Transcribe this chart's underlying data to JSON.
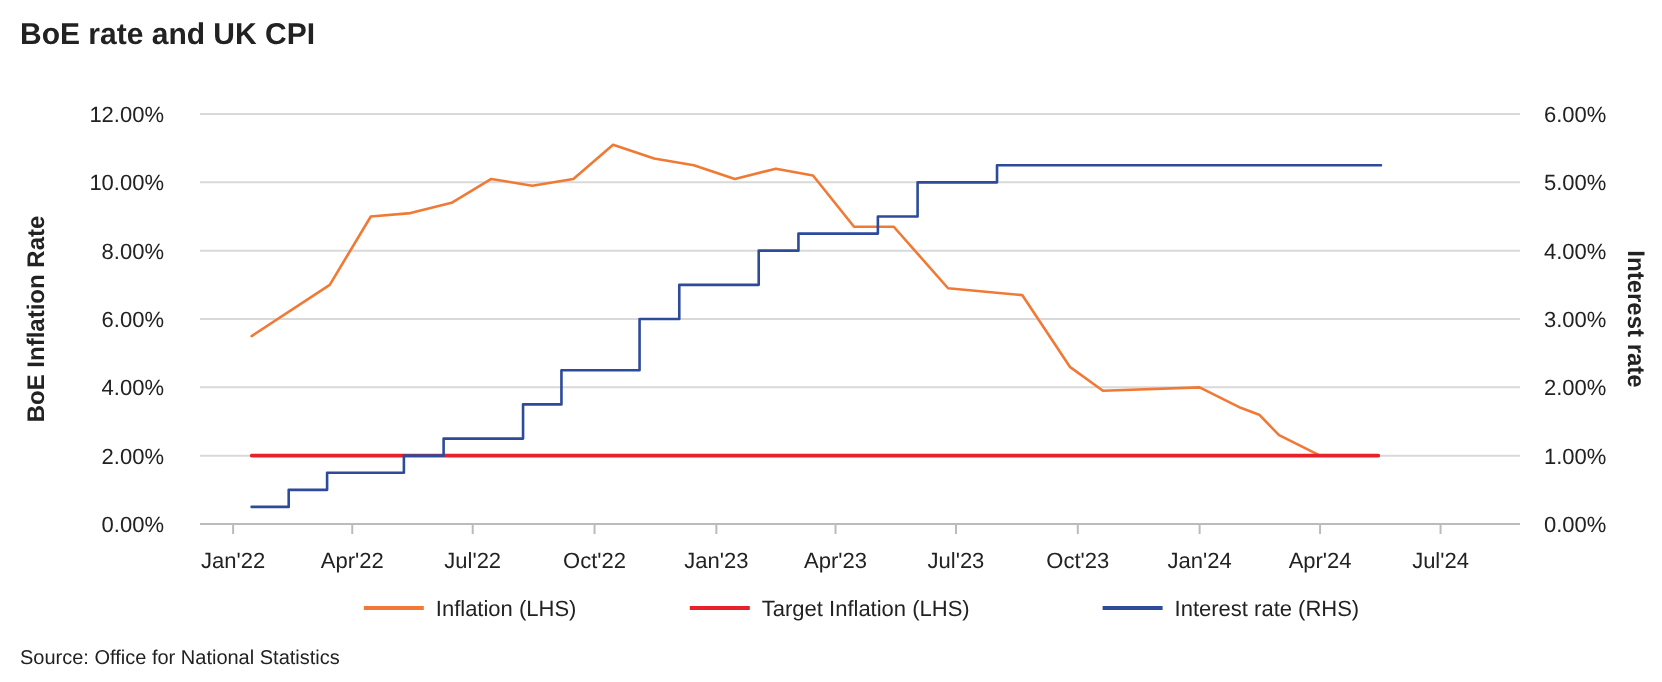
{
  "chart_data": {
    "type": "line",
    "title": "BoE rate and UK CPI",
    "ylabel": "BoE Inflation Rate",
    "y2label": "Interest rate",
    "xlim": [
      "2021-12-07",
      "2024-08-30"
    ],
    "xticks": [
      {
        "value": "2022-01-01",
        "label": "Jan'22"
      },
      {
        "value": "2022-04-01",
        "label": "Apr'22"
      },
      {
        "value": "2022-07-01",
        "label": "Jul'22"
      },
      {
        "value": "2022-10-01",
        "label": "Oct'22"
      },
      {
        "value": "2023-01-01",
        "label": "Jan'23"
      },
      {
        "value": "2023-04-01",
        "label": "Apr'23"
      },
      {
        "value": "2023-07-01",
        "label": "Jul'23"
      },
      {
        "value": "2023-10-01",
        "label": "Oct'23"
      },
      {
        "value": "2024-01-01",
        "label": "Jan'24"
      },
      {
        "value": "2024-04-01",
        "label": "Apr'24"
      },
      {
        "value": "2024-07-01",
        "label": "Jul'24"
      }
    ],
    "ylim": [
      0,
      12
    ],
    "yticks": [
      {
        "value": 0,
        "label": "0.00%"
      },
      {
        "value": 2,
        "label": "2.00%"
      },
      {
        "value": 4,
        "label": "4.00%"
      },
      {
        "value": 6,
        "label": "6.00%"
      },
      {
        "value": 8,
        "label": "8.00%"
      },
      {
        "value": 10,
        "label": "10.00%"
      },
      {
        "value": 12,
        "label": "12.00%"
      }
    ],
    "y2lim": [
      0,
      6
    ],
    "y2ticks": [
      {
        "value": 0,
        "label": "0.00%"
      },
      {
        "value": 1,
        "label": "1.00%"
      },
      {
        "value": 2,
        "label": "2.00%"
      },
      {
        "value": 3,
        "label": "3.00%"
      },
      {
        "value": 4,
        "label": "4.00%"
      },
      {
        "value": 5,
        "label": "5.00%"
      },
      {
        "value": 6,
        "label": "6.00%"
      }
    ],
    "grid": "y",
    "legend": "bottom",
    "series": [
      {
        "name": "Inflation (LHS)",
        "type": "line",
        "color": "#f07a35",
        "x": [
          "2022-01-15",
          "2022-03-15",
          "2022-04-15",
          "2022-05-15",
          "2022-06-15",
          "2022-07-15",
          "2022-08-15",
          "2022-09-15",
          "2022-10-15",
          "2022-11-15",
          "2022-12-15",
          "2023-01-15",
          "2023-02-15",
          "2023-03-15",
          "2023-04-15",
          "2023-05-15",
          "2023-06-25",
          "2023-08-20",
          "2023-09-25",
          "2023-10-20",
          "2024-01-01",
          "2024-02-01",
          "2024-02-15",
          "2024-03-01",
          "2024-04-01",
          "2024-05-15"
        ],
        "values": [
          5.5,
          7.0,
          9.0,
          9.1,
          9.4,
          10.1,
          9.9,
          10.1,
          11.1,
          10.7,
          10.5,
          10.1,
          10.4,
          10.2,
          8.7,
          8.7,
          6.9,
          6.7,
          4.6,
          3.9,
          4.0,
          3.4,
          3.2,
          2.6,
          2.0,
          2.0
        ]
      },
      {
        "name": "Target Inflation (LHS)",
        "type": "line",
        "color": "#e8202a",
        "x": [
          "2022-01-15",
          "2024-05-15"
        ],
        "values": [
          2,
          2
        ]
      },
      {
        "name": "Interest rate (RHS)",
        "type": "step",
        "axis": "y2",
        "color": "#2e4b9b",
        "x": [
          "2022-01-15",
          "2022-02-12",
          "2022-03-13",
          "2022-05-10",
          "2022-06-09",
          "2022-08-08",
          "2022-09-06",
          "2022-11-04",
          "2022-12-04",
          "2023-02-02",
          "2023-03-04",
          "2023-05-03",
          "2023-06-02",
          "2023-08-01",
          "2024-05-17"
        ],
        "values": [
          0.25,
          0.5,
          0.75,
          1.0,
          1.25,
          1.75,
          2.25,
          3.0,
          3.5,
          4.0,
          4.25,
          4.5,
          5.0,
          5.25,
          5.25
        ]
      }
    ],
    "annotations": [
      "Source: Office for National Statistics"
    ]
  }
}
